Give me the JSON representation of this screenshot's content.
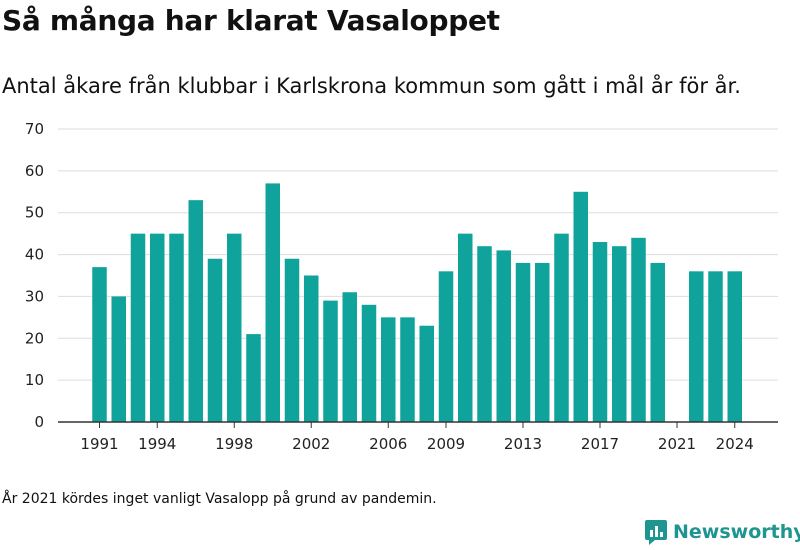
{
  "title": "Så många har klarat Vasaloppet",
  "subtitle": "Antal åkare från klubbar i Karlskrona kommun som gått i mål år för år.",
  "footnote": "År 2021 kördes inget vanligt Vasalopp på grund av pandemin.",
  "brand": {
    "name": "Newsworthy",
    "icon": "newsworthy-logo-icon",
    "color": "#1e9591"
  },
  "colors": {
    "bar": "#0fa39b",
    "grid": "#dddddd",
    "axis": "#333333"
  },
  "chart_data": {
    "type": "bar",
    "title": "Så många har klarat Vasaloppet",
    "subtitle": "Antal åkare från klubbar i Karlskrona kommun som gått i mål år för år.",
    "xlabel": "",
    "ylabel": "",
    "ylim": [
      0,
      70
    ],
    "yticks": [
      0,
      10,
      20,
      30,
      40,
      50,
      60,
      70
    ],
    "xticks": [
      1991,
      1994,
      1998,
      2002,
      2006,
      2009,
      2013,
      2017,
      2021,
      2024
    ],
    "grid": true,
    "categories": [
      1991,
      1992,
      1993,
      1994,
      1995,
      1996,
      1997,
      1998,
      1999,
      2000,
      2001,
      2002,
      2003,
      2004,
      2005,
      2006,
      2007,
      2008,
      2009,
      2010,
      2011,
      2012,
      2013,
      2014,
      2015,
      2016,
      2017,
      2018,
      2019,
      2020,
      2021,
      2022,
      2023,
      2024
    ],
    "values": [
      37,
      30,
      45,
      45,
      45,
      53,
      39,
      45,
      21,
      57,
      39,
      35,
      29,
      31,
      28,
      25,
      25,
      23,
      36,
      45,
      42,
      41,
      38,
      38,
      45,
      55,
      43,
      42,
      44,
      38,
      null,
      36,
      36,
      36
    ]
  }
}
